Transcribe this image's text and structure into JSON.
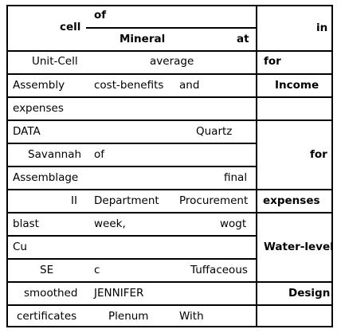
{
  "header": {
    "cell": "cell",
    "of": "of",
    "mineral": "Mineral",
    "at": "at",
    "in": "in"
  },
  "rows": [
    {
      "a": "Unit-Cell",
      "b": "average",
      "c": "for"
    },
    {
      "a": "Assembly",
      "b": "cost-benefits",
      "b2": "and",
      "c": "Income"
    },
    {
      "a": "expenses"
    },
    {
      "a": "DATA",
      "b": "Quartz"
    },
    {
      "a": "Savannah",
      "b": "of",
      "c": "for"
    },
    {
      "a": "Assemblage",
      "b": "final"
    },
    {
      "a": "II",
      "b": "Department",
      "b2": "Procurement",
      "c": "expenses"
    },
    {
      "a": "blast",
      "b": "week,",
      "b2": "wogt"
    },
    {
      "a": "Cu",
      "c": "Water-level"
    },
    {
      "a": "SE",
      "b": "c",
      "b2": "Tuffaceous"
    },
    {
      "a": "smoothed",
      "b": "JENNIFER",
      "c": "Design"
    },
    {
      "a": "certificates",
      "b": "Plenum",
      "b2": "With"
    }
  ]
}
